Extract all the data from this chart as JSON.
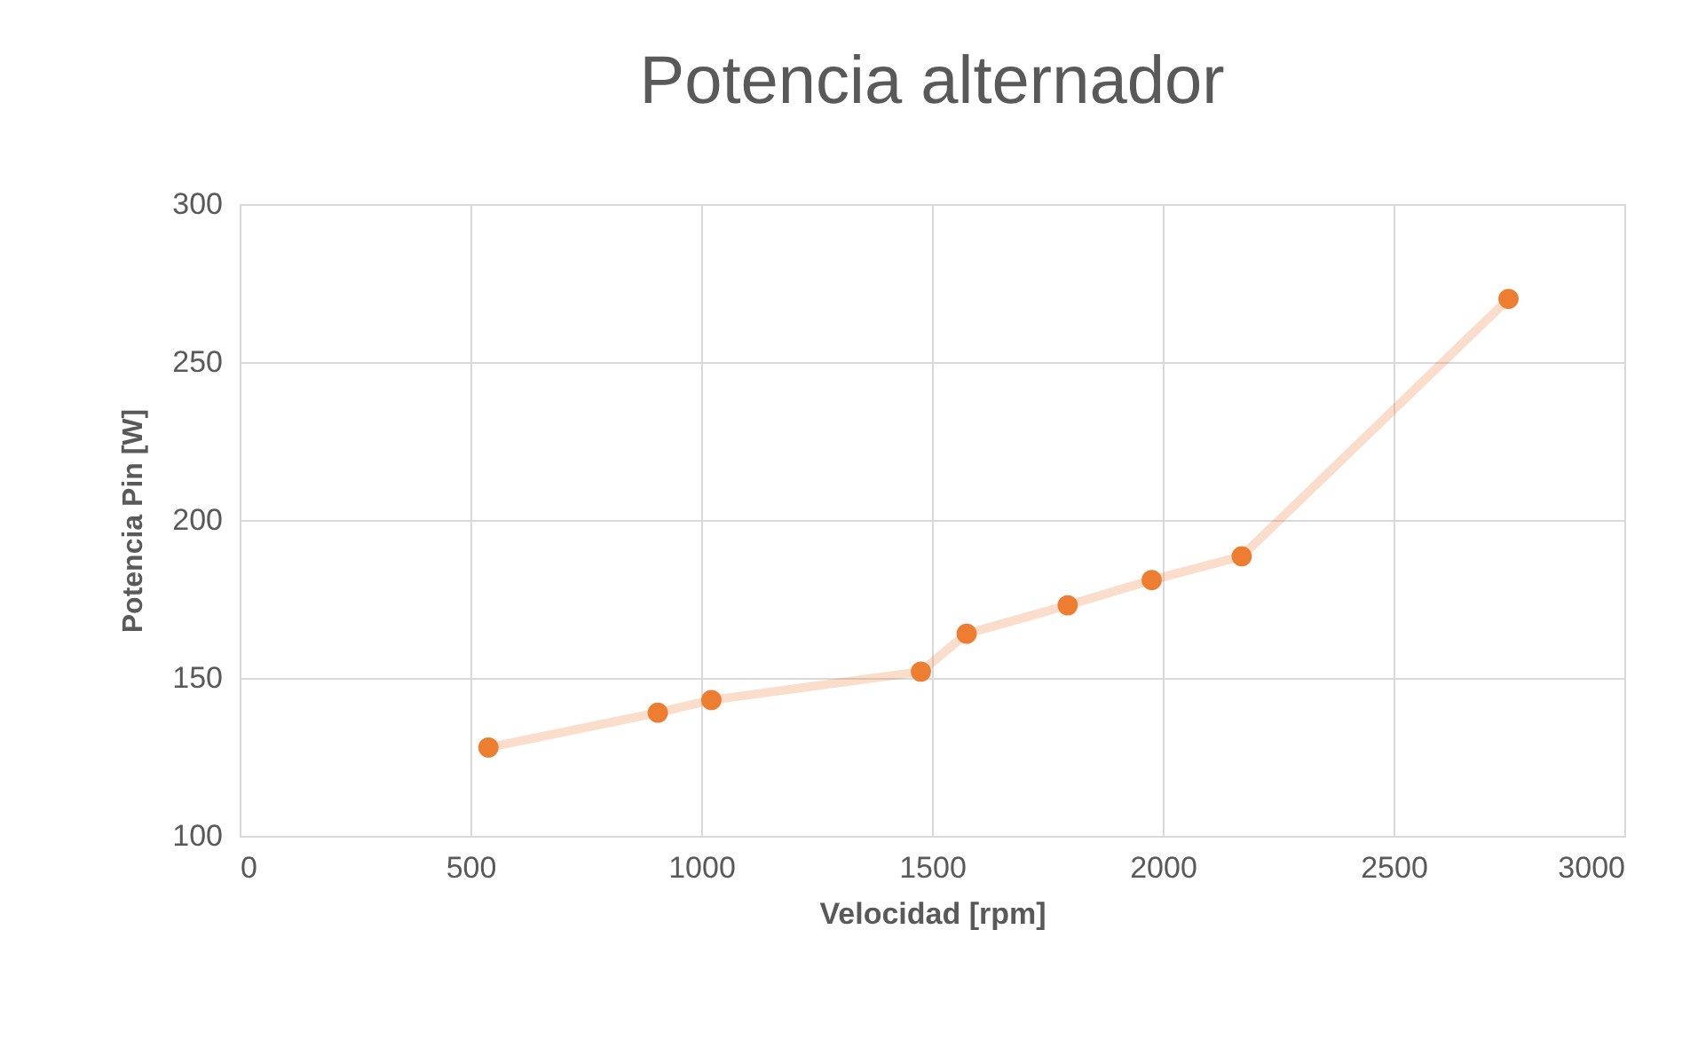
{
  "chart_data": {
    "type": "line",
    "title": "Potencia alternador",
    "xlabel": "Velocidad [rpm]",
    "ylabel": "Potencia Pin [W]",
    "x": [
      539,
      906,
      1022,
      1476,
      1575,
      1794,
      1976,
      2171,
      2749
    ],
    "series": [
      {
        "color": "#ed7d31",
        "values": [
          128,
          139,
          143,
          152,
          164,
          173,
          181,
          188.5,
          270
        ]
      }
    ],
    "xlim": [
      0,
      3000
    ],
    "xticks": [
      0,
      500,
      1000,
      1500,
      2000,
      2500,
      3000
    ],
    "ylim": [
      100,
      300
    ],
    "yticks": [
      100,
      150,
      200,
      250,
      300
    ],
    "grid": true,
    "marker": "circle",
    "line_style": "solid"
  }
}
